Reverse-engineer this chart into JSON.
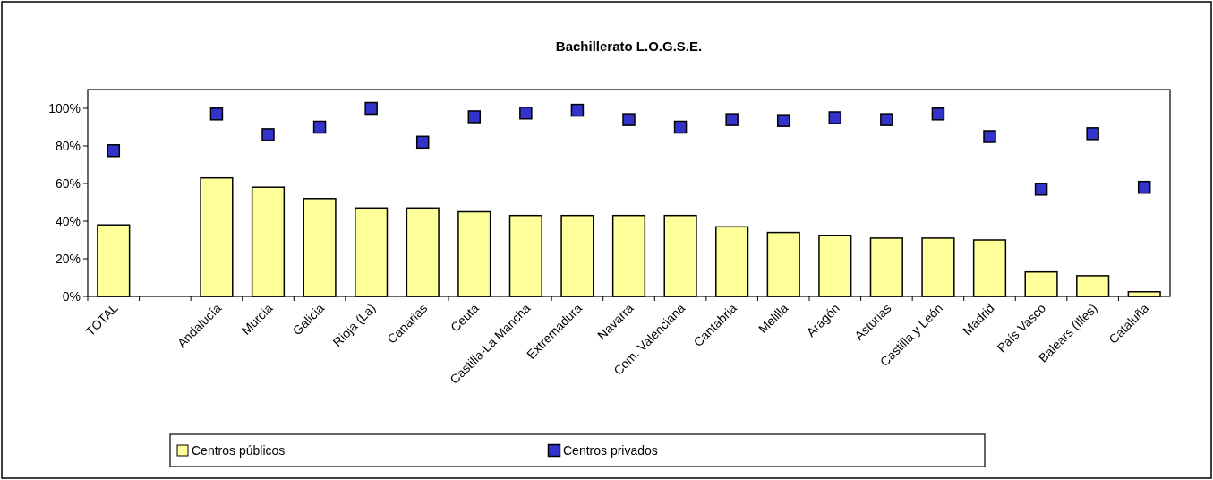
{
  "chart_data": {
    "type": "bar",
    "title": "Bachillerato L.O.G.S.E.",
    "categories": [
      "TOTAL",
      null,
      "Andalucía",
      "Murcia",
      "Galicia",
      "Rioja (La)",
      "Canarias",
      "Ceuta",
      "Castilla-La Mancha",
      "Extremadura",
      "Navarra",
      "Com. Valenciana",
      "Cantabria",
      "Melilla",
      "Aragón",
      "Asturias",
      "Castilla y León",
      "Madrid",
      "País Vasco",
      "Balears (Illes)",
      "Cataluña"
    ],
    "series": [
      {
        "name": "Centros públicos",
        "color": "#ffff99",
        "values": [
          38,
          null,
          63,
          58,
          52,
          47,
          47,
          45,
          43,
          43,
          43,
          43,
          37,
          34,
          32.5,
          31,
          31,
          30,
          13,
          11,
          2.5
        ]
      },
      {
        "name": "Centros privados",
        "type": "scatter",
        "color": "#3333cc",
        "marker": "square",
        "values": [
          77.5,
          null,
          97,
          86,
          90,
          100,
          82,
          95.5,
          97.5,
          99,
          94,
          90,
          94,
          93.5,
          95,
          94,
          97,
          85,
          57,
          86.5,
          58
        ]
      }
    ],
    "ylim": [
      0,
      110
    ],
    "yticks": [
      {
        "value": 0,
        "label": "0%"
      },
      {
        "value": 20,
        "label": "20%"
      },
      {
        "value": 40,
        "label": "40%"
      },
      {
        "value": 60,
        "label": "60%"
      },
      {
        "value": 80,
        "label": "80%"
      },
      {
        "value": 100,
        "label": "100%"
      }
    ],
    "grid": false,
    "legend": "bottom"
  }
}
